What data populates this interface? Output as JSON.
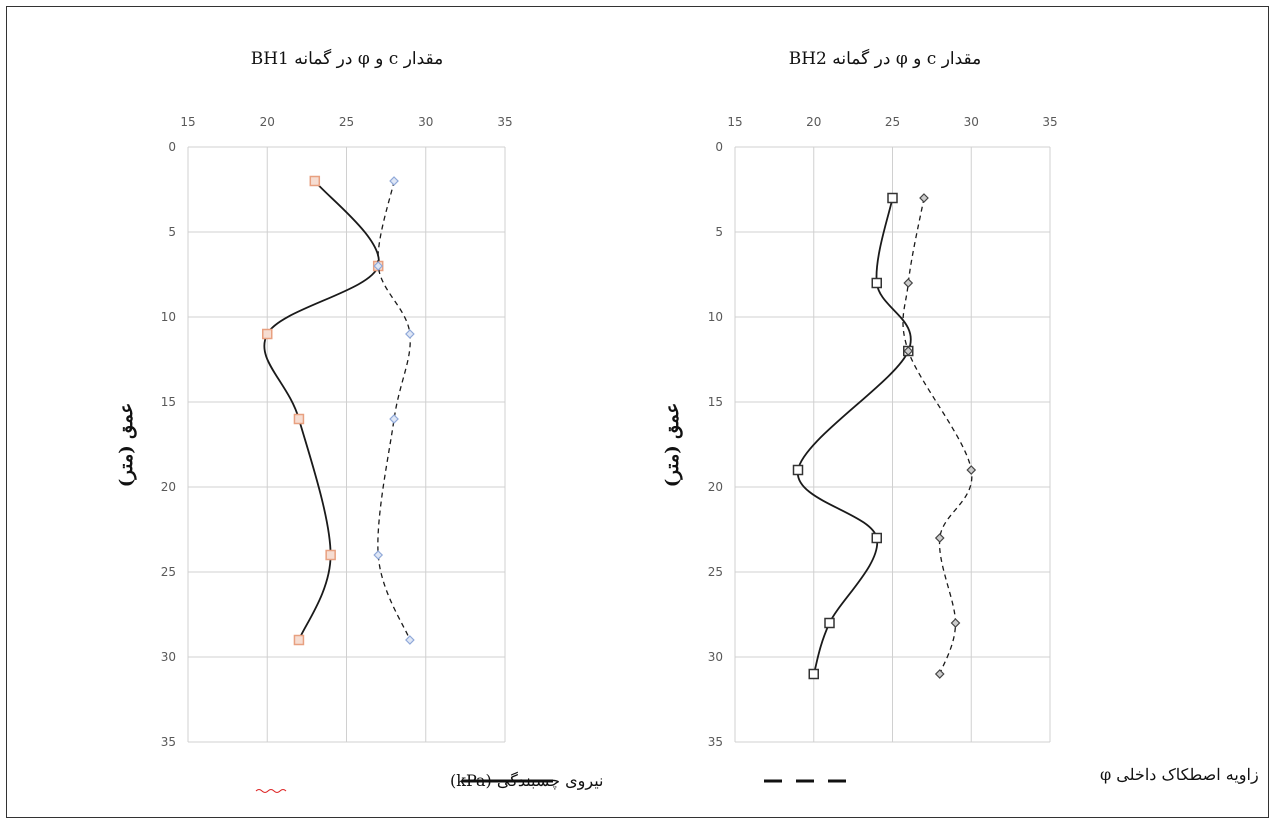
{
  "chart_data": [
    {
      "type": "line",
      "title": "مقدار c و φ در گمانه BH1",
      "ylabel": "عمق (متر)",
      "xlim": [
        15,
        35
      ],
      "ylim": [
        0,
        35
      ],
      "y_inverted": true,
      "x_ticks": [
        15,
        20,
        25,
        30,
        35
      ],
      "y_ticks": [
        0,
        5,
        10,
        15,
        20,
        25,
        30,
        35
      ],
      "grid": true,
      "x_axis_position": "top",
      "series": [
        {
          "name": "نیروی چسبندگی (kPa)",
          "style": "solid",
          "marker": "square",
          "marker_color": "#e8a080",
          "points": [
            [
              23,
              2
            ],
            [
              27,
              7
            ],
            [
              20,
              11
            ],
            [
              22,
              16
            ],
            [
              24,
              24
            ],
            [
              22,
              29
            ]
          ]
        },
        {
          "name": "زاویه اصطکاک داخلی φ",
          "style": "dashed",
          "marker": "diamond",
          "marker_color": "#8fa8d8",
          "points": [
            [
              28,
              2
            ],
            [
              27,
              7
            ],
            [
              29,
              11
            ],
            [
              28,
              16
            ],
            [
              27,
              24
            ],
            [
              29,
              29
            ]
          ]
        }
      ]
    },
    {
      "type": "line",
      "title": "مقدار c و φ در گمانه BH2",
      "ylabel": "عمق (متر)",
      "xlim": [
        15,
        35
      ],
      "ylim": [
        0,
        35
      ],
      "y_inverted": true,
      "x_ticks": [
        15,
        20,
        25,
        30,
        35
      ],
      "y_ticks": [
        0,
        5,
        10,
        15,
        20,
        25,
        30,
        35
      ],
      "grid": true,
      "x_axis_position": "top",
      "series": [
        {
          "name": "نیروی چسبندگی (kPa)",
          "style": "solid",
          "marker": "square",
          "marker_color": "#333333",
          "points": [
            [
              25,
              3
            ],
            [
              24,
              8
            ],
            [
              26,
              12
            ],
            [
              19,
              19
            ],
            [
              24,
              23
            ],
            [
              21,
              28
            ],
            [
              20,
              31
            ]
          ]
        },
        {
          "name": "زاویه اصطکاک داخلی φ",
          "style": "dashed",
          "marker": "diamond",
          "marker_color": "#444444",
          "points": [
            [
              27,
              3
            ],
            [
              26,
              8
            ],
            [
              26,
              12
            ],
            [
              30,
              19
            ],
            [
              28,
              23
            ],
            [
              29,
              28
            ],
            [
              28,
              31
            ]
          ]
        }
      ]
    }
  ],
  "legend": {
    "cohesion_label": "نیروی چسبندگی (kPa)",
    "friction_label": "زاویه اصطکاک داخلی φ"
  }
}
